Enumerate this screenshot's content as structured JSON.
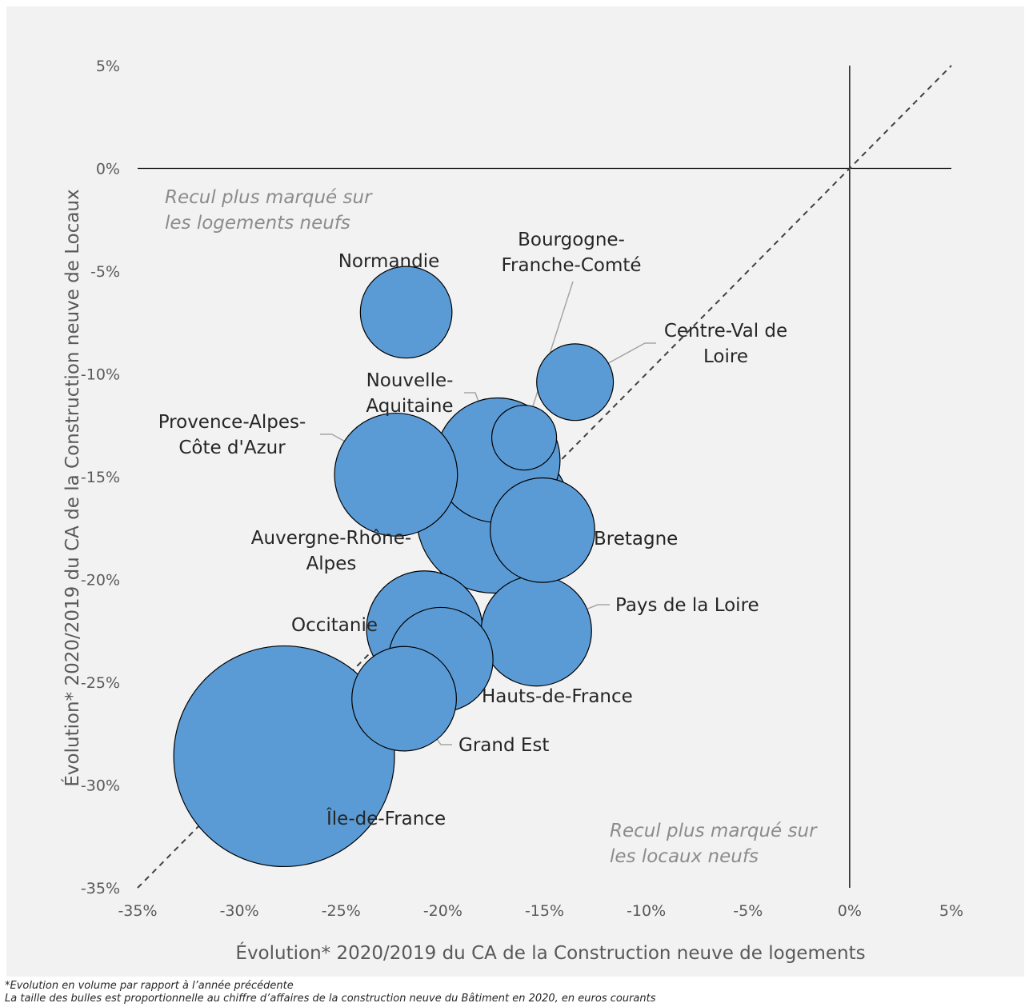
{
  "chart_data": {
    "type": "scatter",
    "xlabel": "Évolution* 2020/2019 du CA de la Construction neuve de logements",
    "ylabel": "Évolution* 2020/2019 du CA de la Construction neuve de Locaux",
    "xlim": [
      -35,
      5
    ],
    "ylim": [
      -35,
      5
    ],
    "x_ticks": [
      "-35%",
      "-30%",
      "-25%",
      "-20%",
      "-15%",
      "-10%",
      "-5%",
      "0%",
      "5%"
    ],
    "y_ticks": [
      "5%",
      "0%",
      "-5%",
      "-10%",
      "-15%",
      "-20%",
      "-25%",
      "-30%",
      "-35%"
    ],
    "reference_line": "y = x",
    "bubble_size_meaning": "chiffre d'affaires de la construction neuve du Bâtiment en 2020",
    "bubbles": [
      {
        "name": [
          "Normandie"
        ],
        "x": -21.8,
        "y": -7.0,
        "size": 2.0
      },
      {
        "name": [
          "Bourgogne-",
          "Franche-Comté"
        ],
        "x": -16.0,
        "y": -13.1,
        "size": 1.0
      },
      {
        "name": [
          "Centre-Val de",
          "Loire"
        ],
        "x": -13.5,
        "y": -10.4,
        "size": 1.4
      },
      {
        "name": [
          "Nouvelle-",
          "Aquitaine"
        ],
        "x": -17.3,
        "y": -14.2,
        "size": 3.7
      },
      {
        "name": [
          "Provence-Alpes-",
          "Côte d'Azur"
        ],
        "x": -22.3,
        "y": -14.9,
        "size": 3.6
      },
      {
        "name": [
          "Auvergne-Rhône-",
          "Alpes"
        ],
        "x": -17.5,
        "y": -16.9,
        "size": 5.7
      },
      {
        "name": [
          "Bretagne"
        ],
        "x": -15.1,
        "y": -17.6,
        "size": 2.6
      },
      {
        "name": [
          "Occitanie"
        ],
        "x": -20.9,
        "y": -22.4,
        "size": 3.2
      },
      {
        "name": [
          "Pays de la Loire"
        ],
        "x": -15.4,
        "y": -22.5,
        "size": 2.9
      },
      {
        "name": [
          "Hauts-de-France"
        ],
        "x": -20.1,
        "y": -23.9,
        "size": 2.6
      },
      {
        "name": [
          "Grand Est"
        ],
        "x": -21.9,
        "y": -25.8,
        "size": 2.6
      },
      {
        "name": [
          "Île-de-France"
        ],
        "x": -27.8,
        "y": -28.6,
        "size": 11.6
      }
    ],
    "annotations": [
      [
        "Recul plus marqué sur",
        "les logements neufs"
      ],
      [
        "Recul plus marqué sur",
        "les locaux neufs"
      ]
    ],
    "colors": {
      "bubble_fill": "#5b9bd5",
      "bubble_stroke": "#000000",
      "background": "#f2f2f2",
      "leader": "#a6a6a6",
      "axis": "#000000",
      "diagonal": "#404040"
    }
  },
  "footnotes": [
    "*Evolution en volume par rapport à l’année précédente",
    "La taille des bulles est proportionnelle au chiffre d’affaires de la construction neuve du Bâtiment en 2020, en euros courants"
  ]
}
